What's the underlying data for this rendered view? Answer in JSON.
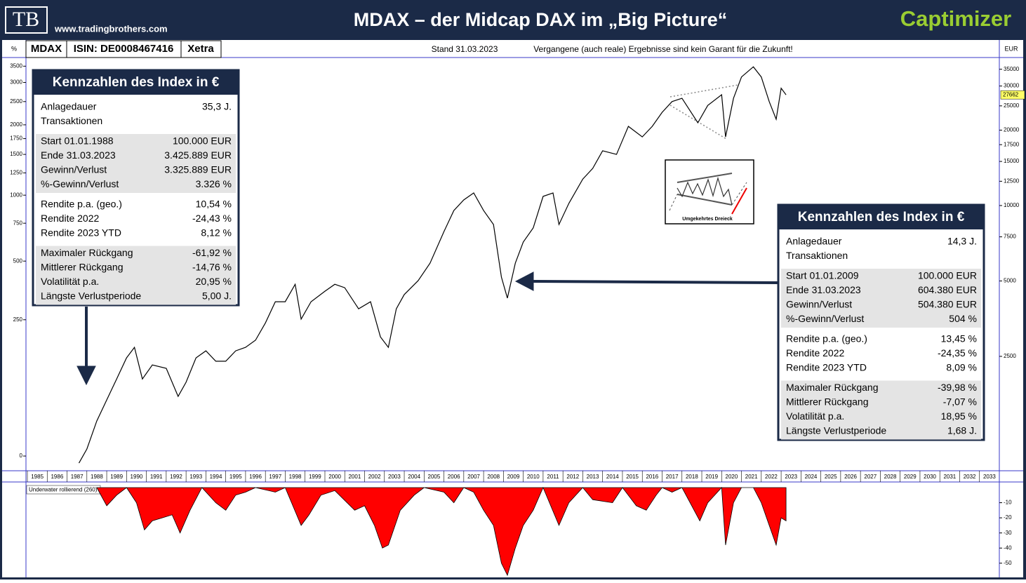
{
  "header": {
    "logo": "TB",
    "url": "www.tradingbrothers.com",
    "title": "MDAX – der Midcap DAX im „Big Picture“",
    "brand": "Captimizer"
  },
  "infobar": {
    "left_unit": "%",
    "symbol": "MDAX",
    "isin": "ISIN: DE0008467416",
    "exchange": "Xetra",
    "date": "Stand 31.03.2023",
    "disclaimer": "Vergangene (auch reale) Ergebnisse sind kein Garant für die Zukunft!",
    "right_unit": "EUR"
  },
  "boxes": [
    {
      "title": "Kennzahlen des Index in €",
      "groups": [
        [
          [
            "Anlagedauer",
            "35,3 J."
          ],
          [
            "Transaktionen"
          ]
        ],
        [
          [
            "Start  01.01.1988",
            "100.000 EUR"
          ],
          [
            "Ende  31.03.2023",
            "3.425.889 EUR"
          ],
          [
            "Gewinn/Verlust",
            "3.325.889 EUR"
          ],
          [
            "%-Gewinn/Verlust",
            "3.326 %"
          ]
        ],
        [
          [
            "Rendite p.a. (geo.)",
            "10,54 %"
          ],
          [
            "Rendite 2022",
            "-24,43 %"
          ],
          [
            "Rendite 2023 YTD",
            "8,12 %"
          ]
        ],
        [
          [
            "Maximaler Rückgang",
            "-61,92 %"
          ],
          [
            "Mittlerer Rückgang",
            "-14,76 %"
          ],
          [
            "Volatilität p.a.",
            "20,95 %"
          ],
          [
            "Längste Verlustperiode",
            "5,00 J."
          ]
        ]
      ]
    },
    {
      "title": "Kennzahlen des Index in €",
      "groups": [
        [
          [
            "Anlagedauer",
            "14,3 J."
          ],
          [
            "Transaktionen"
          ]
        ],
        [
          [
            "Start  01.01.2009",
            "100.000 EUR"
          ],
          [
            "Ende  31.03.2023",
            "604.380 EUR"
          ],
          [
            "Gewinn/Verlust",
            "504.380 EUR"
          ],
          [
            "%-Gewinn/Verlust",
            "504 %"
          ]
        ],
        [
          [
            "Rendite p.a. (geo.)",
            "13,45 %"
          ],
          [
            "Rendite 2022",
            "-24,35 %"
          ],
          [
            "Rendite 2023 YTD",
            "8,09 %"
          ]
        ],
        [
          [
            "Maximaler Rückgang",
            "-39,98 %"
          ],
          [
            "Mittlerer Rückgang",
            "-7,07 %"
          ],
          [
            "Volatilität p.a.",
            "18,95 %"
          ],
          [
            "Längste Verlustperiode",
            "1,68 J."
          ]
        ]
      ]
    }
  ],
  "inset_label": "Umgekehrtes Dreieck",
  "chart_data": [
    {
      "type": "line",
      "log_scale": true,
      "y2log": true,
      "xlim": [
        1985,
        2034
      ],
      "xticks": [
        1985,
        1986,
        1987,
        1988,
        1989,
        1990,
        1991,
        1992,
        1993,
        1994,
        1995,
        1996,
        1997,
        1998,
        1999,
        2000,
        2001,
        2002,
        2003,
        2004,
        2005,
        2006,
        2007,
        2008,
        2009,
        2010,
        2011,
        2012,
        2013,
        2014,
        2015,
        2016,
        2017,
        2018,
        2019,
        2020,
        2021,
        2022,
        2023,
        2024,
        2025,
        2026,
        2027,
        2028,
        2029,
        2030,
        2031,
        2032,
        2033
      ],
      "ylim": [
        908,
        37500
      ],
      "yticks": [
        2500,
        5000,
        7500,
        10000,
        12500,
        15000,
        17500,
        20000,
        25000,
        30000,
        35000
      ],
      "y2lim": [
        -9.2,
        3650
      ],
      "y2ticks": [
        0,
        250,
        500,
        750,
        1000,
        1250,
        1500,
        1750,
        2000,
        2500,
        3000,
        3500
      ],
      "series": [
        {
          "name": "MDAX",
          "color": "#000000",
          "x": [
            1987.6,
            1988.0,
            1988.5,
            1989.0,
            1989.5,
            1990.0,
            1990.4,
            1990.8,
            1991.3,
            1992.0,
            1992.6,
            1993.0,
            1993.5,
            1994.0,
            1994.5,
            1995.0,
            1995.5,
            1996.0,
            1996.5,
            1997.0,
            1997.5,
            1998.0,
            1998.5,
            1998.8,
            1999.3,
            2000.0,
            2000.5,
            2001.0,
            2001.7,
            2002.3,
            2002.8,
            2003.2,
            2003.6,
            2004.0,
            2004.7,
            2005.3,
            2006.0,
            2006.5,
            2007.0,
            2007.5,
            2008.0,
            2008.5,
            2008.9,
            2009.2,
            2009.6,
            2010.0,
            2010.5,
            2011.0,
            2011.5,
            2011.8,
            2012.3,
            2013.0,
            2013.5,
            2014.0,
            2014.7,
            2015.3,
            2016.0,
            2016.5,
            2017.0,
            2017.5,
            2018.0,
            2018.8,
            2019.3,
            2020.0,
            2020.2,
            2020.6,
            2021.0,
            2021.6,
            2022.0,
            2022.4,
            2022.75,
            2023.0,
            2023.25
          ],
          "values": [
            937,
            1067,
            1380,
            1675,
            2030,
            2466,
            2715,
            2030,
            2310,
            2240,
            1730,
            1970,
            2466,
            2630,
            2390,
            2390,
            2630,
            2715,
            2900,
            3400,
            4130,
            4130,
            4850,
            3520,
            4130,
            4550,
            4850,
            4700,
            3870,
            4130,
            2990,
            2715,
            3870,
            4410,
            5010,
            5890,
            7870,
            9550,
            10530,
            11230,
            9550,
            8400,
            5180,
            4270,
            5890,
            7150,
            8140,
            10880,
            11230,
            8400,
            10200,
            12750,
            14070,
            16540,
            16000,
            20700,
            18800,
            20700,
            23560,
            26000,
            26800,
            21400,
            25100,
            27700,
            18800,
            26800,
            32600,
            35800,
            32600,
            26000,
            22100,
            29400,
            27662
          ]
        }
      ]
    },
    {
      "type": "area",
      "title": "Underwater rollierend (260)",
      "xlim": [
        1985,
        2034
      ],
      "ylim": [
        -58,
        0
      ],
      "yticks": [
        -10,
        -20,
        -30,
        -40,
        -50
      ],
      "series": [
        {
          "name": "Underwater",
          "color": "#ff0000",
          "x": [
            1988.5,
            1989.0,
            1989.5,
            1990.0,
            1990.5,
            1990.9,
            1991.3,
            1991.8,
            1992.3,
            1992.7,
            1993.2,
            1993.8,
            1994.5,
            1995.0,
            1995.5,
            1996.0,
            1996.5,
            1997.5,
            1998.0,
            1998.8,
            1999.2,
            1999.8,
            2000.5,
            2001.5,
            2002.0,
            2002.5,
            2002.9,
            2003.2,
            2003.8,
            2004.5,
            2005.0,
            2006.0,
            2006.5,
            2007.0,
            2007.5,
            2008.0,
            2008.5,
            2008.9,
            2009.2,
            2009.6,
            2010.0,
            2010.5,
            2011.0,
            2011.8,
            2012.3,
            2013.0,
            2013.5,
            2014.5,
            2015.0,
            2015.7,
            2016.2,
            2016.7,
            2017.0,
            2017.5,
            2018.0,
            2018.9,
            2019.3,
            2020.0,
            2020.2,
            2020.6,
            2021.0,
            2021.6,
            2022.0,
            2022.4,
            2022.75,
            2023.0,
            2023.25
          ],
          "values": [
            0,
            -12,
            -5,
            0,
            -10,
            -28,
            -22,
            -20,
            -18,
            -30,
            -15,
            0,
            -10,
            -15,
            -5,
            -3,
            0,
            -3,
            0,
            -25,
            -18,
            -5,
            -2,
            -15,
            -12,
            -25,
            -40,
            -38,
            -15,
            -5,
            0,
            -3,
            -10,
            0,
            -3,
            -15,
            -25,
            -50,
            -58,
            -40,
            -25,
            -15,
            0,
            -25,
            -10,
            0,
            -8,
            -10,
            0,
            -12,
            -15,
            -5,
            0,
            -3,
            0,
            -22,
            -10,
            0,
            -38,
            -10,
            0,
            0,
            -10,
            -25,
            -38,
            -20,
            -22
          ]
        }
      ]
    }
  ]
}
